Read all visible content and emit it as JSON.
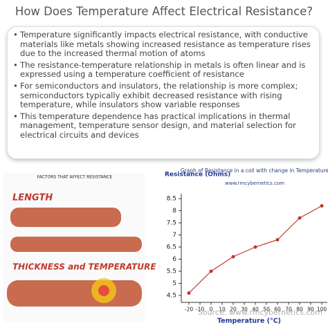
{
  "header": {
    "title": "How Does Temperature Affect Electrical Resistance?"
  },
  "bullets": [
    "Temperature significantly impacts electrical resistance, with conductive materials like metals showing increased resistance as temperature rises due to the increased thermal motion of atoms",
    "The resistance-temperature relationship in metals is often linear and is expressed using a temperature coefficient of resistance",
    "For semiconductors and insulators, the relationship is more complex; semiconductors typically exhibit decreased resistance with rising temperature, while insulators show variable responses",
    "This temperature dependence has practical implications in thermal management, temperature sensor design, and material selection for electrical circuits and devices"
  ],
  "illustration": {
    "title": "FACTORS THAT AFFECT RESISTANCE",
    "heading_1": "LENGTH",
    "heading_2": "THICKNESS and TEMPERATURE"
  },
  "graph": {
    "type": "line",
    "title": "Graph of Resistance in a coil with change in Temperature",
    "subtitle": "www.rmcybernetics.com",
    "y_label": "Resistance (Ohms)",
    "x_label": "Temperature (°C)",
    "x": [
      -20,
      0,
      20,
      40,
      60,
      80,
      100
    ],
    "values": [
      4.6,
      5.5,
      6.1,
      6.5,
      6.8,
      7.7,
      8.2
    ],
    "color": "#c0392b",
    "xlim": [
      -25,
      105
    ],
    "xticks": [
      -20,
      -10,
      0,
      10,
      20,
      30,
      40,
      50,
      60,
      70,
      80,
      90,
      100
    ],
    "ylim": [
      4.2,
      8.7
    ],
    "yticks": [
      4.5,
      5,
      5.5,
      6,
      6.5,
      7,
      7.5,
      8,
      8.5
    ]
  },
  "source": "Source: www.rmcybernetics.com"
}
